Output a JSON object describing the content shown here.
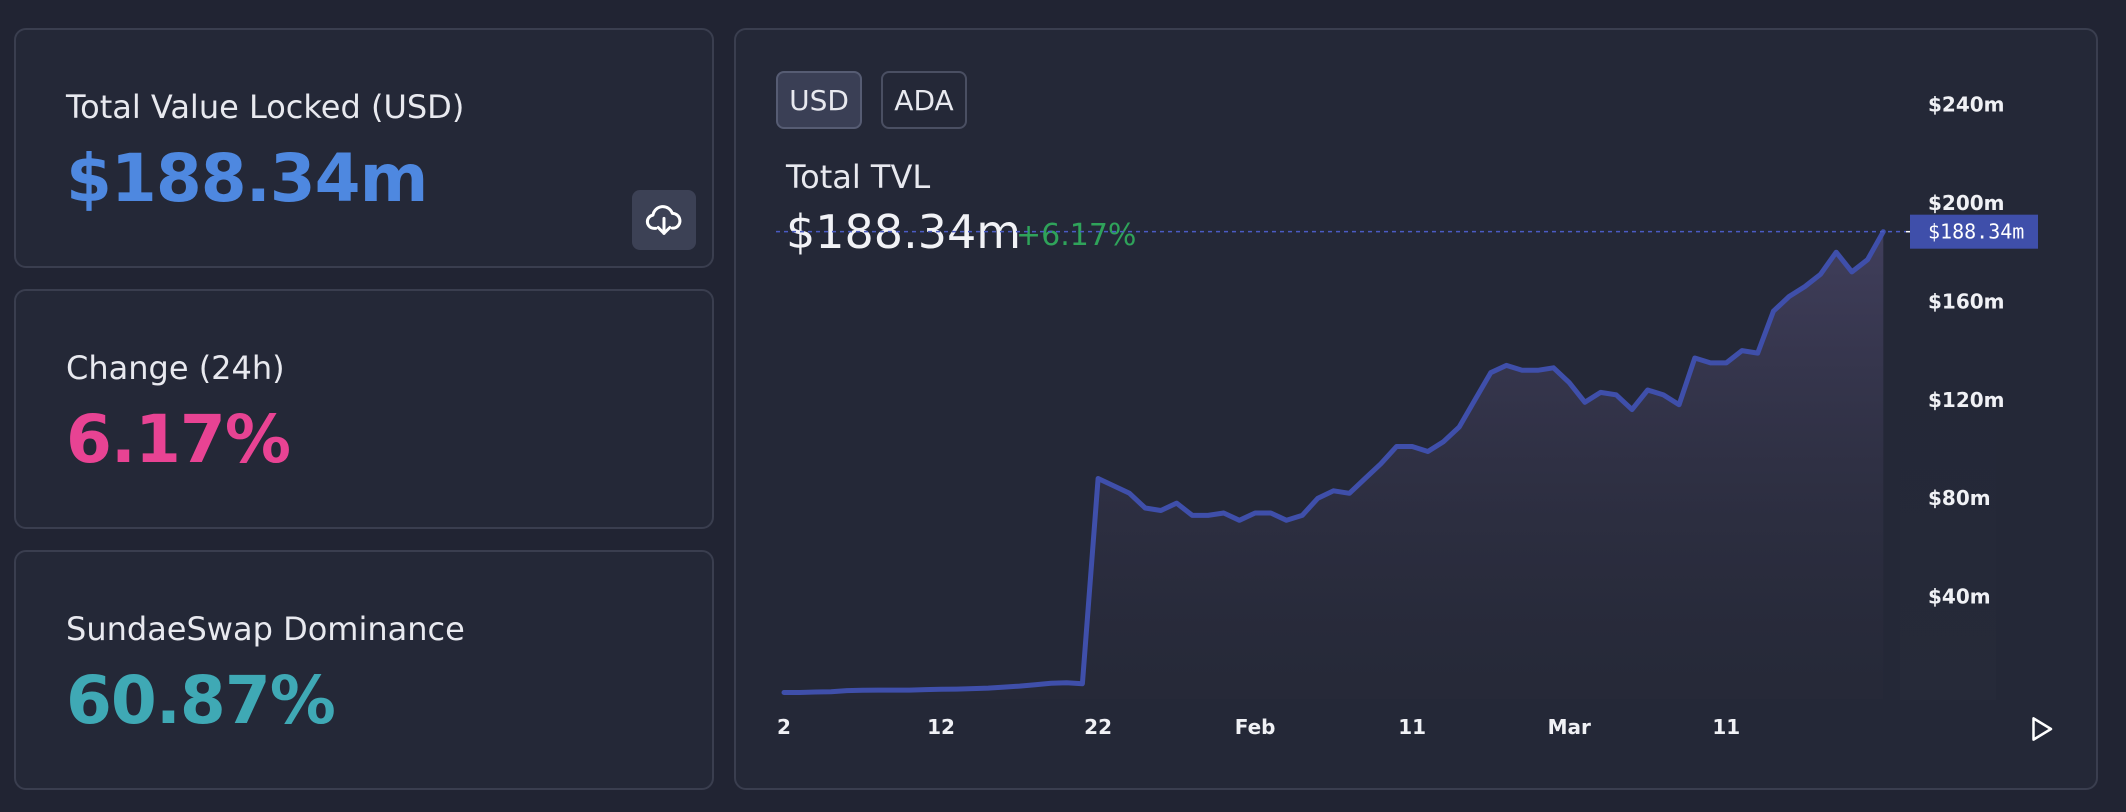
{
  "stats": {
    "tvl": {
      "label": "Total Value Locked (USD)",
      "value": "$188.34m",
      "color": "#4e88e0"
    },
    "change": {
      "label": "Change (24h)",
      "value": "6.17%",
      "color": "#e84393"
    },
    "dominance": {
      "label": "SundaeSwap Dominance",
      "value": "60.87%",
      "color": "#3fa9b5"
    },
    "download_icon": "cloud-download-icon"
  },
  "chart_panel": {
    "toggles": [
      {
        "label": "USD",
        "active": true
      },
      {
        "label": "ADA",
        "active": false
      }
    ],
    "title": "Total TVL",
    "value": "$188.34m",
    "change": "+6.17%",
    "play_icon": "play-icon"
  },
  "chart_data": {
    "type": "area",
    "title": "Total TVL",
    "x_tick_labels": [
      "2",
      "12",
      "22",
      "Feb",
      "11",
      "Mar",
      "11"
    ],
    "x_tick_positions": [
      0,
      10,
      20,
      30,
      40,
      50,
      60
    ],
    "y_ticks": [
      {
        "value": 40,
        "label": "$40m"
      },
      {
        "value": 80,
        "label": "$80m"
      },
      {
        "value": 120,
        "label": "$120m"
      },
      {
        "value": 160,
        "label": "$160m"
      },
      {
        "value": 200,
        "label": "$200m"
      },
      {
        "value": 240,
        "label": "$240m"
      }
    ],
    "ylim": [
      0,
      250
    ],
    "xlim": [
      0,
      71
    ],
    "current_value": 188.34,
    "current_label": "$188.34m",
    "line_color": "#3f4faa",
    "values": [
      1,
      1,
      1.2,
      1.3,
      1.8,
      1.9,
      2,
      2,
      2,
      2.2,
      2.3,
      2.4,
      2.6,
      2.8,
      3.2,
      3.6,
      4.2,
      4.8,
      5,
      4.6,
      88,
      85,
      82,
      76,
      75,
      78,
      73,
      73,
      74,
      71,
      74,
      74,
      71,
      73,
      80,
      83,
      82,
      88,
      94,
      101,
      101,
      99,
      103,
      109,
      120,
      131,
      134,
      132,
      132,
      133,
      127,
      119,
      123,
      122,
      116,
      124,
      122,
      118,
      137,
      135,
      135,
      140,
      139,
      156,
      162,
      166,
      171,
      180,
      172,
      177,
      188.34
    ]
  }
}
